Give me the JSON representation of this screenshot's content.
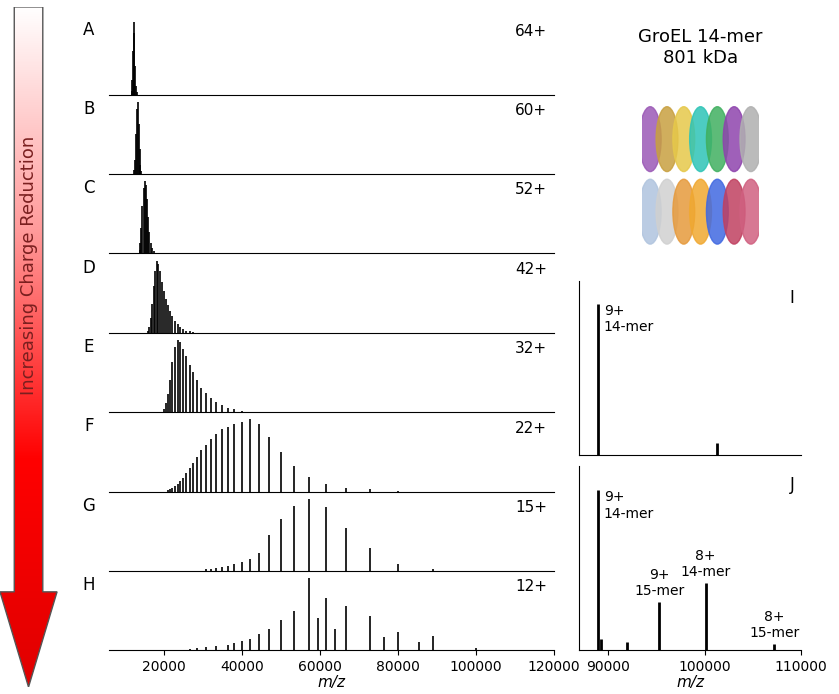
{
  "arrow_label": "Increasing Charge Reduction",
  "header": [
    "GroEL 14-mer",
    "801 kDa"
  ],
  "chart_data": [
    {
      "panel_label": "A",
      "annotation": "64+",
      "type": "stem",
      "color": "#000000",
      "x": [
        11779,
        11955,
        12136,
        12323,
        12516,
        12714,
        12919,
        13131
      ],
      "values": [
        0.05,
        0.2,
        0.6,
        1.0,
        0.85,
        0.4,
        0.12,
        0.03
      ],
      "xlim": [
        6000,
        120000
      ],
      "xticks": [],
      "ylim": [
        0,
        1.1
      ],
      "yticks": [],
      "tick_labels": false
    },
    {
      "panel_label": "B",
      "annotation": "60+",
      "type": "stem",
      "color": "#000000",
      "x": [
        12516,
        12714,
        12919,
        13131,
        13350,
        13576,
        13810,
        14053,
        14304
      ],
      "values": [
        0.05,
        0.2,
        0.55,
        0.9,
        1.0,
        0.7,
        0.35,
        0.12,
        0.04
      ],
      "xlim": [
        6000,
        120000
      ],
      "xticks": [],
      "ylim": [
        0,
        1.1
      ],
      "yticks": [],
      "tick_labels": false
    },
    {
      "panel_label": "C",
      "annotation": "52+",
      "type": "stem",
      "color": "#000000",
      "x": [
        13810,
        14053,
        14304,
        14564,
        14833,
        15113,
        15404,
        15706,
        16020,
        16347,
        16688,
        17043,
        17413
      ],
      "values": [
        0.05,
        0.15,
        0.35,
        0.65,
        0.9,
        1.0,
        0.95,
        0.75,
        0.5,
        0.3,
        0.15,
        0.07,
        0.03
      ],
      "xlim": [
        6000,
        120000
      ],
      "xticks": [],
      "ylim": [
        0,
        1.1
      ],
      "yticks": [],
      "tick_labels": false
    },
    {
      "panel_label": "D",
      "annotation": "42+",
      "type": "stem",
      "color": "#000000",
      "x": [
        16020,
        16347,
        16688,
        17043,
        17413,
        17800,
        18205,
        18628,
        19071,
        19537,
        20025,
        20538,
        21079,
        21649,
        22250,
        22886,
        23559,
        24273,
        25031,
        25839,
        26700,
        27621
      ],
      "values": [
        0.03,
        0.08,
        0.2,
        0.4,
        0.65,
        0.85,
        1.0,
        0.95,
        0.85,
        0.7,
        0.58,
        0.47,
        0.38,
        0.3,
        0.23,
        0.17,
        0.12,
        0.08,
        0.05,
        0.03,
        0.02,
        0.01
      ],
      "xlim": [
        6000,
        120000
      ],
      "xticks": [],
      "ylim": [
        0,
        1.1
      ],
      "yticks": [],
      "tick_labels": false
    },
    {
      "panel_label": "E",
      "annotation": "32+",
      "type": "stem",
      "color": "#000000",
      "x": [
        20025,
        20538,
        21079,
        21649,
        22250,
        22886,
        23559,
        24273,
        25031,
        25839,
        26700,
        27621,
        28607,
        29667,
        30808,
        32040,
        33375,
        34826,
        36409,
        38143,
        40050
      ],
      "values": [
        0.05,
        0.12,
        0.25,
        0.45,
        0.7,
        0.9,
        1.0,
        0.97,
        0.88,
        0.78,
        0.66,
        0.55,
        0.44,
        0.34,
        0.26,
        0.2,
        0.14,
        0.1,
        0.06,
        0.04,
        0.02
      ],
      "xlim": [
        6000,
        120000
      ],
      "xticks": [],
      "ylim": [
        0,
        1.1
      ],
      "yticks": [],
      "tick_labels": false
    },
    {
      "panel_label": "F",
      "annotation": "22+",
      "type": "stem",
      "color": "#000000",
      "x": [
        21079,
        21649,
        22250,
        22886,
        23559,
        24273,
        25031,
        25839,
        26700,
        27621,
        28607,
        29667,
        30808,
        32040,
        33375,
        34826,
        36409,
        38143,
        40050,
        42158,
        44500,
        47118,
        50063,
        53400,
        57214,
        61615,
        66750,
        72818,
        80100
      ],
      "values": [
        0.02,
        0.03,
        0.05,
        0.07,
        0.1,
        0.14,
        0.19,
        0.25,
        0.32,
        0.4,
        0.48,
        0.57,
        0.65,
        0.73,
        0.8,
        0.86,
        0.9,
        0.94,
        0.97,
        1.0,
        0.93,
        0.75,
        0.55,
        0.35,
        0.2,
        0.1,
        0.05,
        0.03,
        0.01
      ],
      "xlim": [
        6000,
        120000
      ],
      "xticks": [],
      "ylim": [
        0,
        1.1
      ],
      "yticks": [],
      "tick_labels": false
    },
    {
      "panel_label": "G",
      "annotation": "15+",
      "type": "stem",
      "color": "#000000",
      "x": [
        30808,
        32040,
        33375,
        34826,
        36409,
        38143,
        40050,
        42158,
        44500,
        47118,
        50063,
        53400,
        57214,
        61615,
        66750,
        72818,
        80100,
        89000
      ],
      "values": [
        0.02,
        0.03,
        0.04,
        0.05,
        0.07,
        0.09,
        0.12,
        0.16,
        0.25,
        0.5,
        0.72,
        0.9,
        1.0,
        0.88,
        0.6,
        0.32,
        0.1,
        0.03
      ],
      "xlim": [
        6000,
        120000
      ],
      "xticks": [],
      "ylim": [
        0,
        1.1
      ],
      "yticks": [],
      "tick_labels": false
    },
    {
      "panel_label": "H",
      "annotation": "12+",
      "type": "stem",
      "color": "#000000",
      "x": [
        26700,
        28607,
        30808,
        33375,
        36409,
        38143,
        40050,
        42158,
        44500,
        47118,
        50063,
        53400,
        57214,
        59500,
        61615,
        64000,
        66750,
        72818,
        76500,
        80100,
        85500,
        89000,
        100125
      ],
      "values": [
        0.02,
        0.03,
        0.04,
        0.06,
        0.08,
        0.1,
        0.13,
        0.16,
        0.22,
        0.3,
        0.42,
        0.55,
        1.0,
        0.45,
        0.72,
        0.3,
        0.62,
        0.48,
        0.18,
        0.25,
        0.12,
        0.2,
        0.03
      ],
      "xlim": [
        6000,
        120000
      ],
      "xticks": [
        20000,
        40000,
        60000,
        80000,
        100000,
        120000
      ],
      "ylim": [
        0,
        1.1
      ],
      "yticks": [],
      "tick_labels": "x",
      "xlabel": "m/z"
    },
    {
      "panel_label": "I",
      "type": "stem",
      "color": "#000000",
      "x": [
        89000,
        101300
      ],
      "values": [
        1.0,
        0.08
      ],
      "peak_labels": [
        "9+\n14-mer",
        null
      ],
      "xlim": [
        87000,
        110000
      ],
      "xticks": [],
      "ylim": [
        0,
        1.15
      ],
      "yticks": [],
      "tick_labels": false
    },
    {
      "panel_label": "J",
      "type": "stem",
      "color": "#000000",
      "x": [
        89000,
        89300,
        92000,
        95300,
        100100,
        107200
      ],
      "values": [
        1.0,
        0.07,
        0.05,
        0.3,
        0.42,
        0.04
      ],
      "peak_labels": [
        "9+\n14-mer",
        null,
        null,
        "9+\n15-mer",
        "8+\n14-mer",
        "8+\n15-mer"
      ],
      "xlim": [
        87000,
        110000
      ],
      "xticks": [
        90000,
        100000,
        110000
      ],
      "ylim": [
        0,
        1.15
      ],
      "yticks": [],
      "tick_labels": "x",
      "xlabel": "m/z"
    }
  ]
}
